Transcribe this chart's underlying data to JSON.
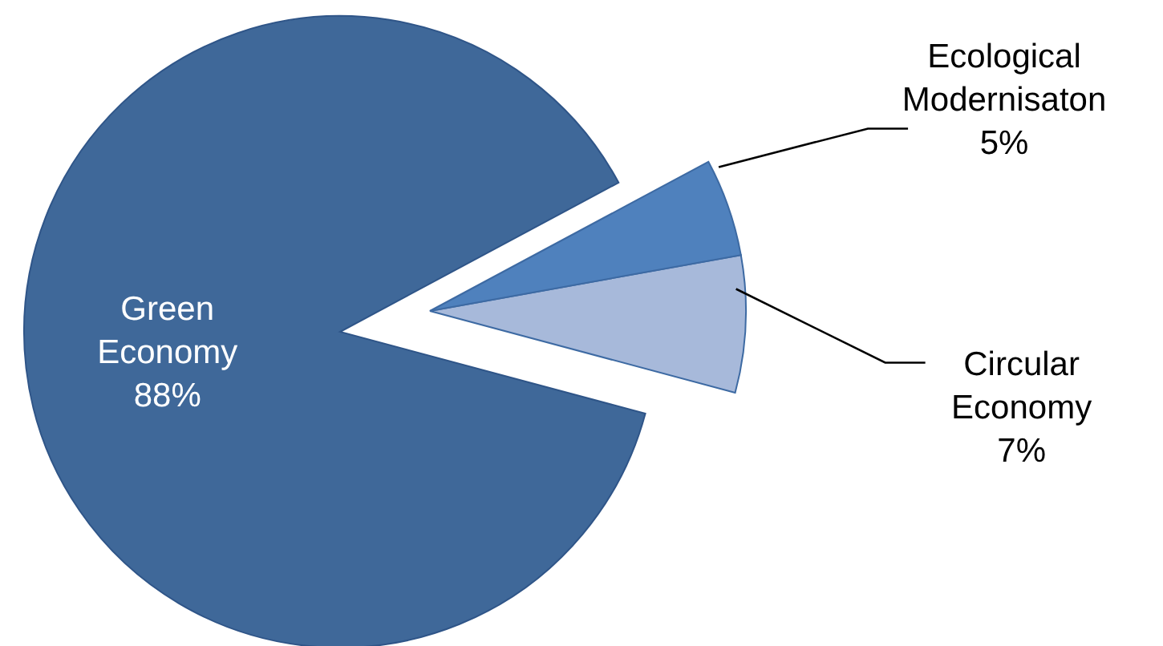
{
  "chart_data": {
    "type": "pie",
    "categories": [
      "Circular Economy",
      "Ecological Modernisaton",
      "Green Economy"
    ],
    "values": [
      7,
      5,
      88
    ],
    "colors": [
      "#a7b9da",
      "#4f81bd",
      "#3f6899"
    ],
    "value_labels": [
      "7%",
      "5%",
      "88%"
    ],
    "legend": false
  }
}
